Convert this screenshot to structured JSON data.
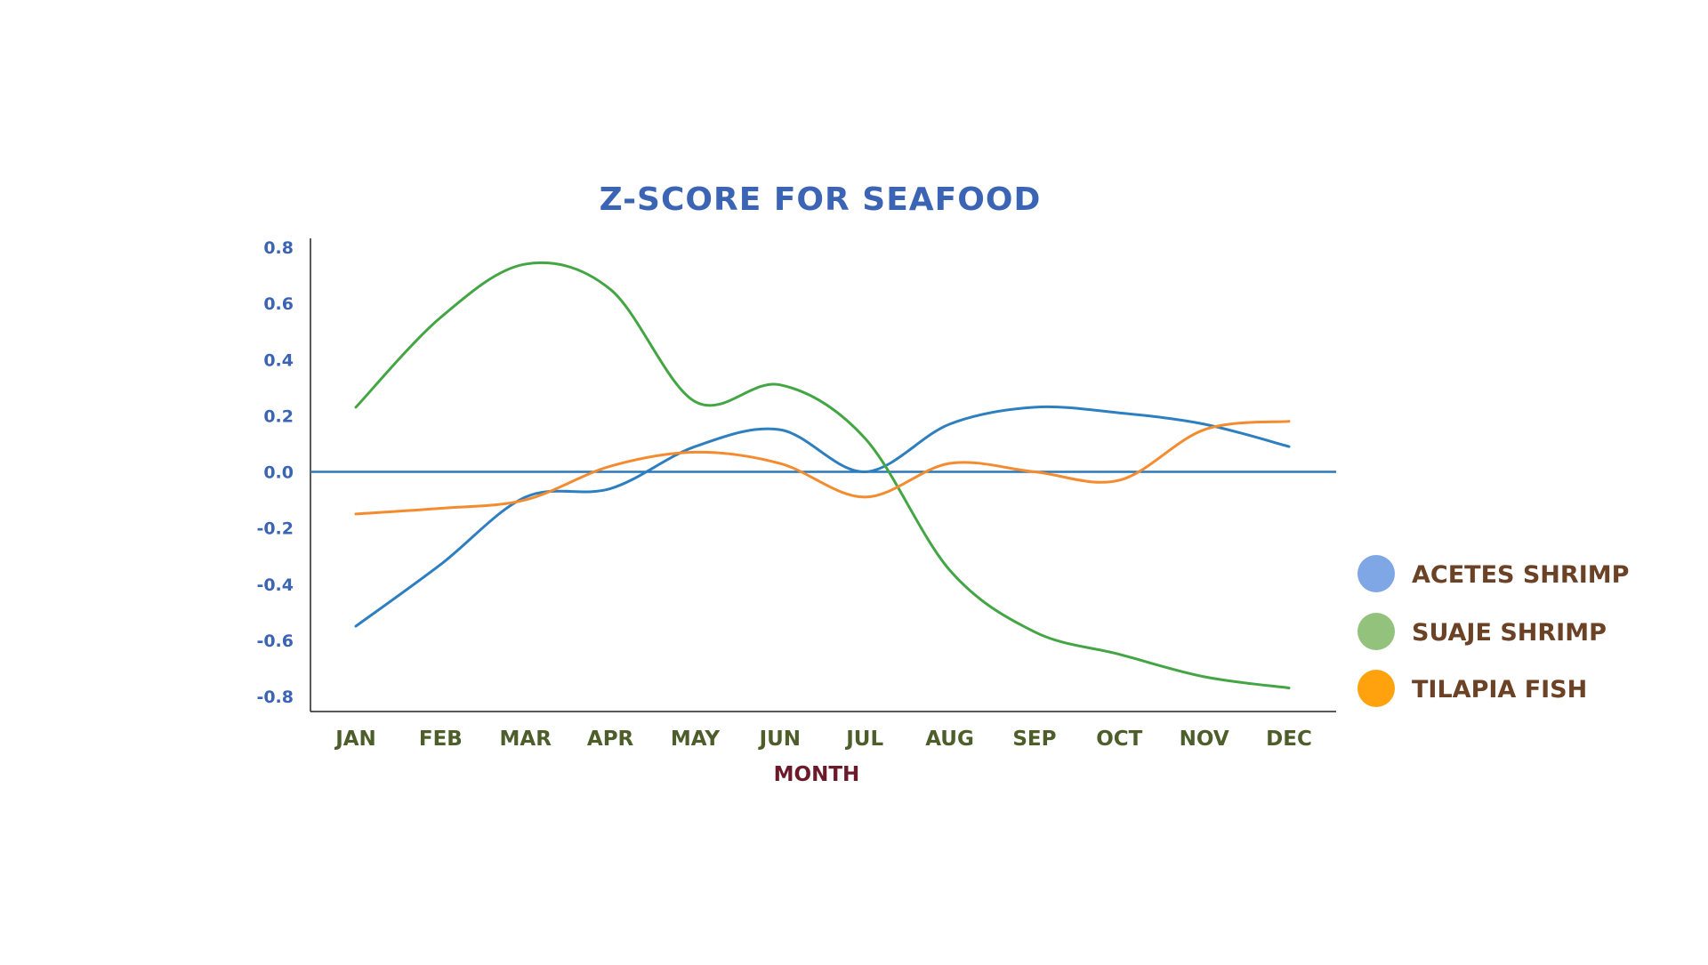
{
  "colors": {
    "title": "#3b64b4",
    "ytick": "#3b64b4",
    "xtick": "#4d5e2b",
    "xlabel": "#6b1a2a",
    "legend_text": "#6b4226",
    "axis": "#222222",
    "zero_line": "#2a78b8"
  },
  "chart_data": {
    "type": "line",
    "title": "Z-SCORE FOR SEAFOOD",
    "xlabel": "MONTH",
    "ylabel": "",
    "categories": [
      "JAN",
      "FEB",
      "MAR",
      "APR",
      "MAY",
      "JUN",
      "JUL",
      "AUG",
      "SEP",
      "OCT",
      "NOV",
      "DEC"
    ],
    "ylim": [
      -0.85,
      0.85
    ],
    "yticks": [
      "0.8",
      "0.6",
      "0.4",
      "0.2",
      "0.0",
      "-0.2",
      "-0.4",
      "-0.6",
      "-0.8"
    ],
    "ytick_values": [
      0.8,
      0.6,
      0.4,
      0.2,
      0.0,
      -0.2,
      -0.4,
      -0.6,
      -0.8
    ],
    "zero_line": true,
    "grid": false,
    "legend_position": "right",
    "series": [
      {
        "name": "ACETES SHRIMP",
        "line_color": "#2e7fc0",
        "legend_color": "#7fa7e6",
        "values": [
          -0.55,
          -0.33,
          -0.09,
          -0.06,
          0.09,
          0.15,
          0.0,
          0.17,
          0.23,
          0.21,
          0.17,
          0.09
        ]
      },
      {
        "name": "SUAJE SHRIMP",
        "line_color": "#44a544",
        "legend_color": "#92c27b",
        "values": [
          0.23,
          0.55,
          0.74,
          0.65,
          0.25,
          0.31,
          0.12,
          -0.35,
          -0.57,
          -0.65,
          -0.73,
          -0.77
        ]
      },
      {
        "name": "TILAPIA FISH",
        "line_color": "#f48b2f",
        "legend_color": "#ffa20e",
        "values": [
          -0.15,
          -0.13,
          -0.1,
          0.02,
          0.07,
          0.03,
          -0.09,
          0.03,
          0.0,
          -0.03,
          0.15,
          0.18
        ]
      }
    ]
  }
}
